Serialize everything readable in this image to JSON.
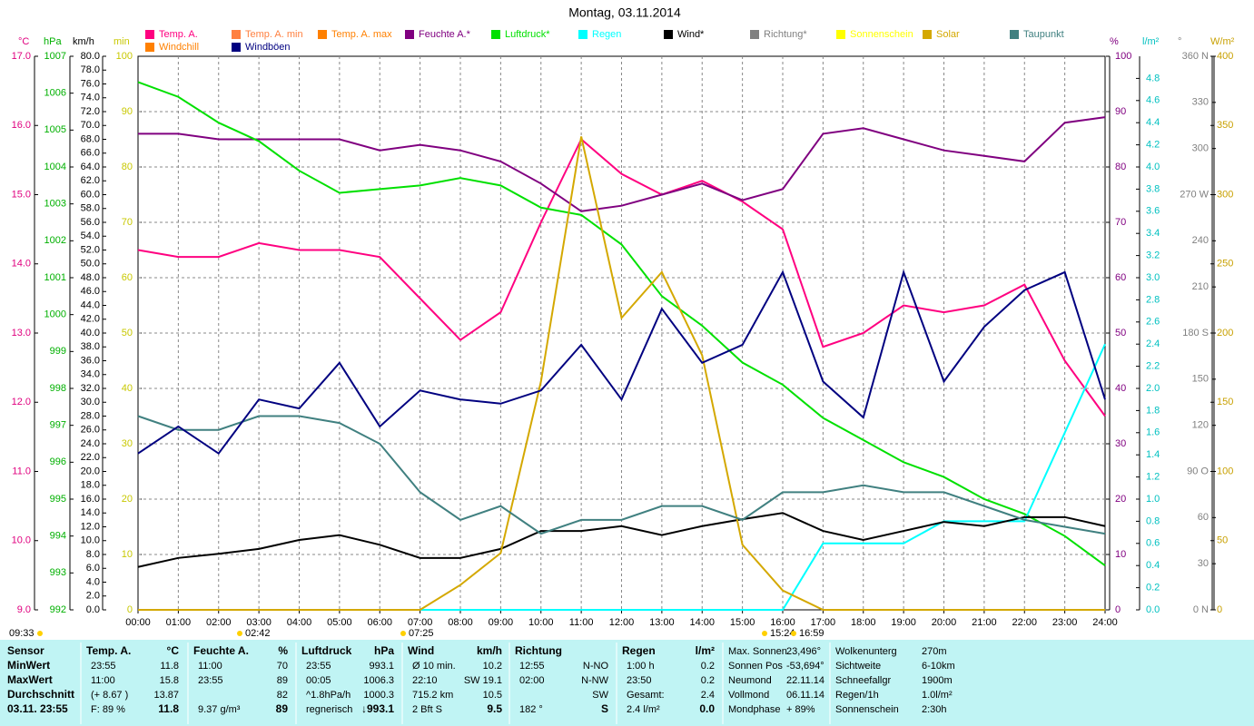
{
  "chart_data": {
    "type": "line",
    "title": "Montag, 03.11.2014",
    "categories": [
      "00:00",
      "01:00",
      "02:00",
      "03:00",
      "04:00",
      "05:00",
      "06:00",
      "07:00",
      "08:00",
      "09:00",
      "10:00",
      "11:00",
      "12:00",
      "13:00",
      "14:00",
      "15:00",
      "16:00",
      "17:00",
      "18:00",
      "19:00",
      "20:00",
      "21:00",
      "22:00",
      "23:00",
      "24:00"
    ],
    "grid": true,
    "axes": [
      {
        "unit": "°C",
        "color": "#e0007f",
        "lim": [
          9,
          17
        ],
        "ticks": [
          {
            "value": 9,
            "label": "9.0"
          },
          {
            "value": 10,
            "label": "10.0"
          },
          {
            "value": 11,
            "label": "11.0"
          },
          {
            "value": 12,
            "label": "12.0"
          },
          {
            "value": 13,
            "label": "13.0"
          },
          {
            "value": 14,
            "label": "14.0"
          },
          {
            "value": 15,
            "label": "15.0"
          },
          {
            "value": 16,
            "label": "16.0"
          },
          {
            "value": 17,
            "label": "17.0"
          }
        ]
      },
      {
        "unit": "hPa",
        "color": "#00b000",
        "lim": [
          992,
          1007
        ],
        "ticks": [
          992,
          993,
          994,
          995,
          996,
          997,
          998,
          999,
          1000,
          1001,
          1002,
          1003,
          1004,
          1005,
          1006,
          1007
        ]
      },
      {
        "unit": "km/h",
        "color": "#000000",
        "lim": [
          0,
          80
        ],
        "ticks": [
          {
            "value": 0,
            "label": "0.0"
          },
          {
            "value": 2,
            "label": "2.0"
          },
          {
            "value": 4,
            "label": "4.0"
          },
          {
            "value": 6,
            "label": "6.0"
          },
          {
            "value": 8,
            "label": "8.0"
          },
          {
            "value": 10,
            "label": "10.0"
          },
          {
            "value": 12,
            "label": "12.0"
          },
          {
            "value": 14,
            "label": "14.0"
          },
          {
            "value": 16,
            "label": "16.0"
          },
          {
            "value": 18,
            "label": "18.0"
          },
          {
            "value": 20,
            "label": "20.0"
          },
          {
            "value": 22,
            "label": "22.0"
          },
          {
            "value": 24,
            "label": "24.0"
          },
          {
            "value": 26,
            "label": "26.0"
          },
          {
            "value": 28,
            "label": "28.0"
          },
          {
            "value": 30,
            "label": "30.0"
          },
          {
            "value": 32,
            "label": "32.0"
          },
          {
            "value": 34,
            "label": "34.0"
          },
          {
            "value": 36,
            "label": "36.0"
          },
          {
            "value": 38,
            "label": "38.0"
          },
          {
            "value": 40,
            "label": "40.0"
          },
          {
            "value": 42,
            "label": "42.0"
          },
          {
            "value": 44,
            "label": "44.0"
          },
          {
            "value": 46,
            "label": "46.0"
          },
          {
            "value": 48,
            "label": "48.0"
          },
          {
            "value": 50,
            "label": "50.0"
          },
          {
            "value": 52,
            "label": "52.0"
          },
          {
            "value": 54,
            "label": "54.0"
          },
          {
            "value": 56,
            "label": "56.0"
          },
          {
            "value": 58,
            "label": "58.0"
          },
          {
            "value": 60,
            "label": "60.0"
          },
          {
            "value": 62,
            "label": "62.0"
          },
          {
            "value": 64,
            "label": "64.0"
          },
          {
            "value": 66,
            "label": "66.0"
          },
          {
            "value": 68,
            "label": "68.0"
          },
          {
            "value": 70,
            "label": "70.0"
          },
          {
            "value": 72,
            "label": "72.0"
          },
          {
            "value": 74,
            "label": "74.0"
          },
          {
            "value": 76,
            "label": "76.0"
          },
          {
            "value": 78,
            "label": "78.0"
          },
          {
            "value": 80,
            "label": "80.0"
          }
        ]
      },
      {
        "unit": "min",
        "color": "#c8c800",
        "lim": [
          0,
          100
        ],
        "ticks": [
          0,
          10,
          20,
          30,
          40,
          50,
          60,
          70,
          80,
          90,
          100
        ]
      },
      {
        "unit": "%",
        "color": "#800080",
        "lim": [
          0,
          100
        ],
        "ticks": [
          0,
          10,
          20,
          30,
          40,
          50,
          60,
          70,
          80,
          90,
          100
        ]
      },
      {
        "unit": "l/m²",
        "color": "#00c0c0",
        "lim": [
          0,
          5
        ],
        "ticks": [
          {
            "value": 0,
            "label": "0.0"
          },
          {
            "value": 0.2,
            "label": "0.2"
          },
          {
            "value": 0.4,
            "label": "0.4"
          },
          {
            "value": 0.6,
            "label": "0.6"
          },
          {
            "value": 0.8,
            "label": "0.8"
          },
          {
            "value": 1,
            "label": "1.0"
          },
          {
            "value": 1.2,
            "label": "1.2"
          },
          {
            "value": 1.4,
            "label": "1.4"
          },
          {
            "value": 1.6,
            "label": "1.6"
          },
          {
            "value": 1.8,
            "label": "1.8"
          },
          {
            "value": 2,
            "label": "2.0"
          },
          {
            "value": 2.2,
            "label": "2.2"
          },
          {
            "value": 2.4,
            "label": "2.4"
          },
          {
            "value": 2.6,
            "label": "2.6"
          },
          {
            "value": 2.8,
            "label": "2.8"
          },
          {
            "value": 3,
            "label": "3.0"
          },
          {
            "value": 3.2,
            "label": "3.2"
          },
          {
            "value": 3.4,
            "label": "3.4"
          },
          {
            "value": 3.6,
            "label": "3.6"
          },
          {
            "value": 3.8,
            "label": "3.8"
          },
          {
            "value": 4,
            "label": "4.0"
          },
          {
            "value": 4.2,
            "label": "4.2"
          },
          {
            "value": 4.4,
            "label": "4.4"
          },
          {
            "value": 4.6,
            "label": "4.6"
          },
          {
            "value": 4.8,
            "label": "4.8"
          }
        ]
      },
      {
        "unit": "°",
        "color": "#808080",
        "lim": [
          0,
          360
        ],
        "ticks": [
          {
            "value": 0,
            "label": "0 N"
          },
          30,
          60,
          {
            "value": 90,
            "label": "90 O"
          },
          120,
          150,
          {
            "value": 180,
            "label": "180 S"
          },
          210,
          240,
          {
            "value": 270,
            "label": "270 W"
          },
          300,
          330,
          {
            "value": 360,
            "label": "360 N"
          }
        ]
      },
      {
        "unit": "W/m²",
        "color": "#c8a000",
        "lim": [
          0,
          400
        ],
        "ticks": [
          0,
          50,
          100,
          150,
          200,
          250,
          300,
          350,
          400
        ]
      }
    ],
    "series": [
      {
        "name": "Temp. A.",
        "color": "#ff0080",
        "axis": "°C",
        "values": [
          14.2,
          14.1,
          14.1,
          14.3,
          14.2,
          14.2,
          14.1,
          13.5,
          12.9,
          13.3,
          14.6,
          15.8,
          15.3,
          15.0,
          15.2,
          14.9,
          14.5,
          12.8,
          13.0,
          13.4,
          13.3,
          13.4,
          13.7,
          12.6,
          11.8
        ]
      },
      {
        "name": "Temp. A. min",
        "color": "#ff8040"
      },
      {
        "name": "Temp. A. max",
        "color": "#ff8000"
      },
      {
        "name": "Feuchte A.*",
        "color": "#800080",
        "axis": "%",
        "values": [
          86,
          86,
          85,
          85,
          85,
          85,
          83,
          84,
          83,
          81,
          77,
          72,
          73,
          75,
          77,
          74,
          76,
          86,
          87,
          85,
          83,
          82,
          81,
          88,
          89
        ]
      },
      {
        "name": "Luftdruck*",
        "color": "#00e000",
        "axis": "hPa",
        "values": [
          1006.3,
          1005.9,
          1005.2,
          1004.7,
          1003.9,
          1003.3,
          1003.4,
          1003.5,
          1003.7,
          1003.5,
          1002.9,
          1002.7,
          1001.9,
          1000.5,
          999.7,
          998.7,
          998.1,
          997.2,
          996.6,
          996.0,
          995.6,
          995.0,
          994.6,
          994.0,
          993.2
        ]
      },
      {
        "name": "Regen",
        "color": "#00ffff",
        "axis": "l/m²",
        "values": [
          0,
          0,
          0,
          0,
          0,
          0,
          0,
          0,
          0,
          0,
          0,
          0,
          0,
          0,
          0,
          0,
          0,
          0.6,
          0.6,
          0.6,
          0.8,
          0.8,
          0.8,
          1.6,
          2.4
        ]
      },
      {
        "name": "Wind*",
        "color": "#000000",
        "axis": "km/h",
        "values": [
          6.2,
          7.5,
          8.1,
          8.8,
          10.1,
          10.8,
          9.4,
          7.5,
          7.5,
          8.8,
          11.4,
          11.4,
          12.1,
          10.8,
          12.1,
          13.1,
          14.0,
          11.4,
          10.1,
          11.4,
          12.7,
          12.1,
          13.4,
          13.4,
          12.1
        ]
      },
      {
        "name": "Richtung*",
        "color": "#808080"
      },
      {
        "name": "Sonnenschein",
        "color": "#ffff00"
      },
      {
        "name": "Solar",
        "color": "#d4a800",
        "axis": "W/m²",
        "values": [
          0,
          0,
          0,
          0,
          0,
          0,
          0,
          0,
          18,
          41,
          165,
          342,
          211,
          244,
          184,
          47,
          14,
          0,
          0,
          0,
          0,
          0,
          0,
          0,
          0
        ]
      },
      {
        "name": "Taupunkt",
        "color": "#408080",
        "axis": "°C",
        "values": [
          11.8,
          11.6,
          11.6,
          11.8,
          11.8,
          11.7,
          11.4,
          10.7,
          10.3,
          10.5,
          10.1,
          10.3,
          10.3,
          10.5,
          10.5,
          10.3,
          10.7,
          10.7,
          10.8,
          10.7,
          10.7,
          10.5,
          10.3,
          10.2,
          10.1
        ]
      },
      {
        "name": "Windchill",
        "color": "#ff8000"
      },
      {
        "name": "Windböen",
        "color": "#000080",
        "axis": "km/h",
        "values": [
          22.6,
          26.5,
          22.6,
          30.4,
          29.1,
          35.7,
          26.5,
          31.7,
          30.4,
          29.8,
          31.7,
          38.3,
          30.4,
          43.5,
          35.7,
          38.3,
          48.8,
          33.0,
          27.8,
          48.8,
          33.0,
          40.9,
          46.2,
          48.8,
          30.4
        ]
      }
    ],
    "annotations": [
      "09:33",
      "02:42",
      "07:25",
      "15:24",
      "16:59"
    ]
  },
  "stats_table": {
    "row_labels": [
      "Sensor",
      "MinWert",
      "MaxWert",
      "Durchschnitt",
      "03.11. 23:55"
    ],
    "columns": [
      {
        "header": "Temp. A.",
        "unit": "°C",
        "rows": [
          {
            "l": "23:55",
            "r": "11.8"
          },
          {
            "l": "11:00",
            "r": "15.8"
          },
          {
            "l": "(+ 8.67 )",
            "r": "13.87"
          },
          {
            "l": "F: 89 %",
            "r": "11.8"
          }
        ]
      },
      {
        "header": "Feuchte A.",
        "unit": "%",
        "rows": [
          {
            "l": "11:00",
            "r": "70"
          },
          {
            "l": "23:55",
            "r": "89"
          },
          {
            "r": "82"
          },
          {
            "l": "9.37 g/m³",
            "r": "89"
          }
        ]
      },
      {
        "header": "Luftdruck",
        "unit": "hPa",
        "rows": [
          {
            "l": "23:55",
            "r": "993.1"
          },
          {
            "l": "00:05",
            "r": "1006.3"
          },
          {
            "l": "^1.8hPa/h",
            "r": "1000.3"
          },
          {
            "l": "regnerisch",
            "r": "↓993.1"
          }
        ]
      },
      {
        "header": "Wind",
        "unit": "km/h",
        "rows": [
          {
            "l": "Ø 10 min.",
            "r": "10.2"
          },
          {
            "l": "22:10",
            "r": "SW 19.1"
          },
          {
            "l": "715.2 km",
            "r": "10.5"
          },
          {
            "l": "2 Bft S",
            "r": "9.5"
          }
        ]
      },
      {
        "header": "Richtung",
        "rows": [
          {
            "l": "12:55",
            "r": "N-NO"
          },
          {
            "l": "02:00",
            "r": "N-NW"
          },
          {
            "r": "SW"
          },
          {
            "l": "182 °",
            "r": "S"
          }
        ]
      },
      {
        "header": "Regen",
        "unit": "l/m²",
        "rows": [
          {
            "l": "1:00 h",
            "r": "0.2"
          },
          {
            "l": "23:50",
            "r": "0.2"
          },
          {
            "l": "Gesamt:",
            "r": "2.4"
          },
          {
            "l": "2.4 l/m²",
            "r": "0.0"
          }
        ]
      }
    ],
    "info": [
      [
        {
          "l": "Max. Sonnen",
          "r": "23,496°"
        },
        {
          "l": "Sonnen Pos",
          "r": "-53,694°"
        },
        {
          "l": "Neumond",
          "r": "22.11.14"
        },
        {
          "l": "Vollmond",
          "r": "06.11.14"
        },
        {
          "l": "Mondphase",
          "r": "+ 89%"
        }
      ],
      [
        {
          "l": "Wolkenunterg",
          "r": "270m"
        },
        {
          "l": "Sichtweite",
          "r": "6-10km"
        },
        {
          "l": "Schneefallgr",
          "r": "1900m"
        },
        {
          "l": "Regen/1h",
          "r": "1.0l/m²"
        },
        {
          "l": "Sonnenschein",
          "r": "2:30h"
        }
      ]
    ]
  }
}
